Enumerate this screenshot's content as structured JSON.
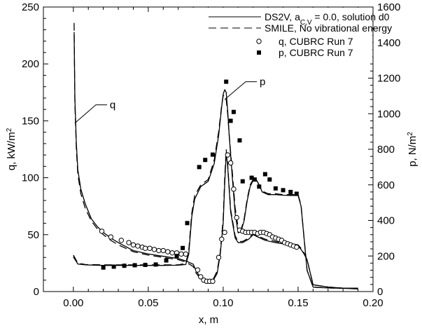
{
  "chart_data": {
    "type": "line",
    "x_axis": {
      "label": "x, m",
      "range": [
        -0.02,
        0.2
      ],
      "ticks": [
        0.0,
        0.05,
        0.1,
        0.15,
        0.2
      ],
      "tick_labels": [
        "0.00",
        "0.05",
        "0.10",
        "0.15",
        "0.20"
      ]
    },
    "y_left": {
      "label_main": "q, kW/m",
      "label_sup": "2",
      "range": [
        0,
        250
      ],
      "ticks": [
        0,
        50,
        100,
        150,
        200,
        250
      ],
      "tick_labels": [
        "0",
        "50",
        "100",
        "150",
        "200",
        "250"
      ]
    },
    "y_right": {
      "label_main": "p, N/m",
      "label_sup": "2",
      "range": [
        0,
        1600
      ],
      "ticks": [
        0,
        200,
        400,
        600,
        800,
        1000,
        1200,
        1400,
        1600
      ],
      "tick_labels": [
        "0",
        "200",
        "400",
        "600",
        "800",
        "1000",
        "1200",
        "1400",
        "1600"
      ]
    },
    "grid": false,
    "legend": {
      "position": "top-right",
      "entries": [
        {
          "text_pre": "DS2V,  a",
          "text_sub": "C,V",
          "text_post": " = 0.0,  solution d0",
          "marker": "solid-line"
        },
        {
          "text": "SMILE,  No  vibrational energy",
          "marker": "dashed-line"
        },
        {
          "text": "q,  CUBRC Run 7",
          "marker": "open-circle"
        },
        {
          "text": "p,  CUBRC Run 7",
          "marker": "filled-square"
        }
      ]
    },
    "annotations": [
      {
        "text": "q",
        "axis": "left",
        "at": [
          0.001,
          148
        ],
        "label_at": [
          0.015,
          164
        ]
      },
      {
        "text": "p",
        "axis": "right",
        "at": [
          0.101,
          1080
        ],
        "label_at": [
          0.115,
          1180
        ]
      }
    ],
    "series": [
      {
        "name": "DS2V,  a C,V = 0.0,  solution d0 (q)",
        "axis": "left",
        "style": "solid",
        "x": [
          0.0005,
          0.001,
          0.002,
          0.003,
          0.005,
          0.008,
          0.012,
          0.016,
          0.02,
          0.025,
          0.03,
          0.04,
          0.05,
          0.06,
          0.07,
          0.075,
          0.08,
          0.082,
          0.085,
          0.088,
          0.09,
          0.093,
          0.096,
          0.098,
          0.1,
          0.101,
          0.102,
          0.103,
          0.105,
          0.108,
          0.11,
          0.113,
          0.117,
          0.12,
          0.123,
          0.128,
          0.135,
          0.14,
          0.145,
          0.15,
          0.152,
          0.154,
          0.156,
          0.16,
          0.17,
          0.18,
          0.19
        ],
        "y": [
          228,
          170,
          130,
          107,
          90,
          77,
          64,
          57,
          52,
          47,
          43,
          36,
          33,
          31,
          29,
          27,
          24,
          18,
          12,
          9,
          8,
          9,
          16,
          32,
          60,
          95,
          122,
          110,
          70,
          47,
          43,
          43,
          46,
          50,
          48,
          45,
          43,
          42,
          41,
          40,
          37,
          33,
          28,
          6,
          4,
          3,
          3
        ]
      },
      {
        "name": "SMILE,  No  vibrational energy (q)",
        "axis": "left",
        "style": "dashed",
        "x": [
          0.0005,
          0.001,
          0.002,
          0.003,
          0.005,
          0.008,
          0.012,
          0.016,
          0.02,
          0.025,
          0.03,
          0.04,
          0.05,
          0.06,
          0.07,
          0.075,
          0.08,
          0.082,
          0.085,
          0.088,
          0.09,
          0.093,
          0.096,
          0.098,
          0.1,
          0.101,
          0.102,
          0.103,
          0.105,
          0.108,
          0.11,
          0.113,
          0.117,
          0.12,
          0.123,
          0.128,
          0.135,
          0.14,
          0.145,
          0.15,
          0.152,
          0.154,
          0.156,
          0.16,
          0.17,
          0.18,
          0.19
        ],
        "y": [
          236,
          165,
          125,
          103,
          86,
          73,
          62,
          55,
          50,
          45,
          41,
          35,
          32,
          30,
          28,
          26,
          22,
          16,
          11,
          8,
          8,
          10,
          18,
          34,
          64,
          100,
          125,
          112,
          72,
          49,
          44,
          44,
          47,
          51,
          49,
          46,
          44,
          43,
          42,
          41,
          38,
          34,
          28,
          6,
          4,
          3,
          3
        ]
      },
      {
        "name": "DS2V,  a C,V = 0.0,  solution d0 (p)",
        "axis": "right",
        "style": "solid",
        "x": [
          0.0,
          0.003,
          0.008,
          0.02,
          0.04,
          0.06,
          0.07,
          0.075,
          0.077,
          0.079,
          0.081,
          0.085,
          0.09,
          0.094,
          0.097,
          0.099,
          0.1,
          0.101,
          0.102,
          0.103,
          0.104,
          0.106,
          0.108,
          0.11,
          0.112,
          0.114,
          0.116,
          0.118,
          0.12,
          0.122,
          0.124,
          0.126,
          0.13,
          0.135,
          0.14,
          0.145,
          0.15,
          0.152,
          0.154,
          0.156,
          0.16,
          0.17,
          0.18,
          0.19
        ],
        "y": [
          195,
          155,
          150,
          147,
          147,
          147,
          148,
          152,
          210,
          420,
          520,
          590,
          620,
          720,
          880,
          1040,
          1110,
          1135,
          1120,
          1020,
          880,
          650,
          440,
          330,
          340,
          400,
          510,
          590,
          625,
          630,
          600,
          560,
          545,
          545,
          542,
          540,
          540,
          480,
          300,
          120,
          25,
          20,
          18,
          15
        ]
      },
      {
        "name": "SMILE,  No  vibrational energy (p)",
        "axis": "right",
        "style": "dashed",
        "x": [
          0.0,
          0.003,
          0.008,
          0.02,
          0.04,
          0.06,
          0.07,
          0.075,
          0.077,
          0.079,
          0.081,
          0.085,
          0.09,
          0.094,
          0.097,
          0.099,
          0.1,
          0.101,
          0.102,
          0.103,
          0.104,
          0.106,
          0.108,
          0.11,
          0.112,
          0.114,
          0.116,
          0.118,
          0.12,
          0.122,
          0.124,
          0.126,
          0.13,
          0.135,
          0.14,
          0.145,
          0.15,
          0.152,
          0.154,
          0.156,
          0.16,
          0.17,
          0.18,
          0.19
        ],
        "y": [
          205,
          160,
          152,
          150,
          150,
          150,
          150,
          158,
          230,
          440,
          540,
          600,
          630,
          740,
          900,
          1050,
          1100,
          1105,
          1080,
          1000,
          880,
          680,
          470,
          360,
          350,
          410,
          520,
          600,
          630,
          630,
          600,
          565,
          550,
          550,
          545,
          545,
          545,
          485,
          300,
          120,
          25,
          20,
          18,
          15
        ]
      },
      {
        "name": "q,  CUBRC Run 7",
        "axis": "left",
        "style": "open-circle",
        "x": [
          0.019,
          0.025,
          0.032,
          0.037,
          0.04,
          0.043,
          0.046,
          0.048,
          0.051,
          0.054,
          0.057,
          0.06,
          0.063,
          0.066,
          0.069,
          0.072,
          0.075,
          0.083,
          0.085,
          0.087,
          0.089,
          0.091,
          0.093,
          0.097,
          0.099,
          0.101,
          0.103,
          0.105,
          0.107,
          0.109,
          0.111,
          0.113,
          0.115,
          0.117,
          0.119,
          0.121,
          0.123,
          0.125,
          0.127,
          0.129,
          0.131,
          0.133,
          0.135,
          0.137,
          0.139,
          0.141,
          0.143,
          0.145,
          0.147,
          0.149
        ],
        "y": [
          53,
          48,
          45,
          43,
          41,
          40,
          39,
          38,
          38,
          37,
          36,
          36,
          35,
          34,
          34,
          33,
          33,
          19,
          13,
          10,
          9,
          9,
          9,
          30,
          46,
          52,
          120,
          113,
          90,
          65,
          54,
          53,
          52,
          52,
          52,
          52,
          51,
          52,
          52,
          51,
          50,
          48,
          47,
          46,
          45,
          43,
          42,
          41,
          40,
          39
        ]
      },
      {
        "name": "p,  CUBRC Run 7",
        "axis": "right",
        "style": "filled-square",
        "x": [
          0.02,
          0.027,
          0.034,
          0.041,
          0.048,
          0.055,
          0.062,
          0.069,
          0.073,
          0.076,
          0.084,
          0.088,
          0.093,
          0.102,
          0.105,
          0.107,
          0.111,
          0.113,
          0.119,
          0.121,
          0.124,
          0.128,
          0.131,
          0.135,
          0.14,
          0.145,
          0.149
        ],
        "y": [
          135,
          140,
          145,
          148,
          150,
          152,
          175,
          200,
          245,
          385,
          700,
          740,
          770,
          1180,
          960,
          1010,
          850,
          620,
          640,
          630,
          590,
          660,
          630,
          580,
          570,
          560,
          550
        ]
      }
    ]
  }
}
